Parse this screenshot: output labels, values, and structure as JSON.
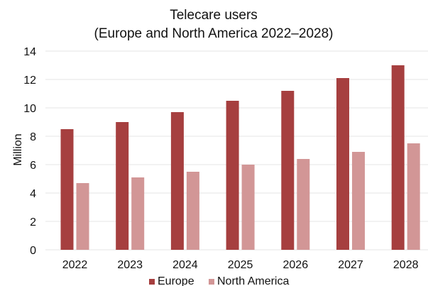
{
  "chart_data": {
    "type": "bar",
    "title": "Telecare users",
    "subtitle": "(Europe and North America 2022–2028)",
    "ylabel": "Million",
    "xlabel": "",
    "ylim": [
      0,
      14
    ],
    "yticks": [
      0,
      2,
      4,
      6,
      8,
      10,
      12,
      14
    ],
    "grid": true,
    "legend_position": "bottom",
    "categories": [
      "2022",
      "2023",
      "2024",
      "2025",
      "2026",
      "2027",
      "2028"
    ],
    "series": [
      {
        "name": "Europe",
        "color": "#a63f3f",
        "values": [
          8.5,
          9.0,
          9.7,
          10.5,
          11.2,
          12.1,
          13.0
        ]
      },
      {
        "name": "North America",
        "color": "#d29696",
        "values": [
          4.7,
          5.1,
          5.5,
          6.0,
          6.4,
          6.9,
          7.5
        ]
      }
    ]
  }
}
